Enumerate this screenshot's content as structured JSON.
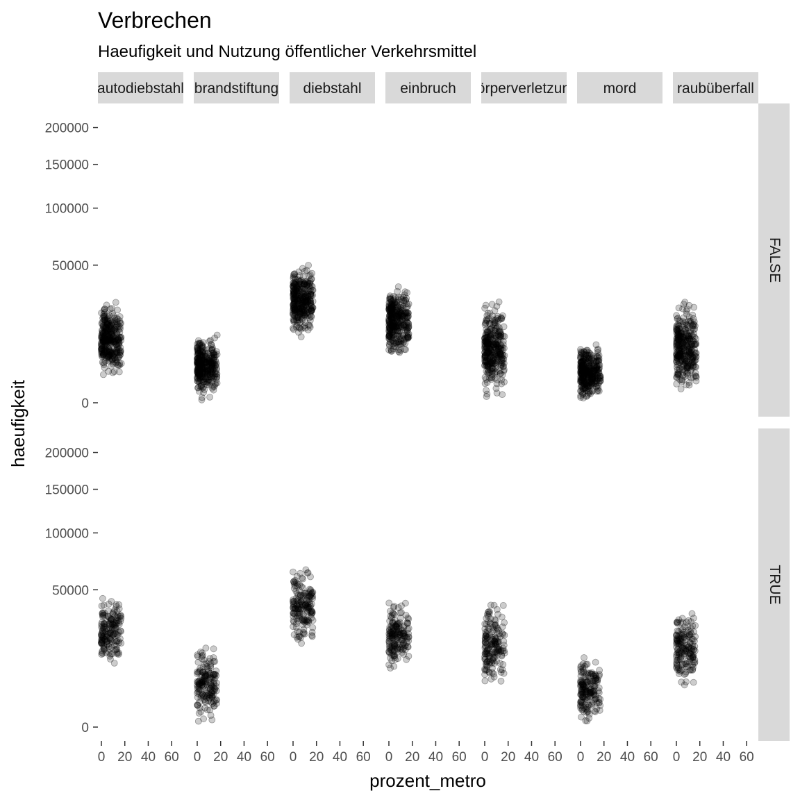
{
  "chart_data": {
    "type": "scatter",
    "title": "Verbrechen",
    "subtitle": "Haeufigkeit und Nutzung öffentlicher Verkehrsmittel",
    "xlabel": "prozent_metro",
    "ylabel": "haeufigkeit",
    "x_ticks": [
      "0",
      "20",
      "40",
      "60"
    ],
    "y_ticks": [
      "0",
      "50000",
      "100000",
      "150000",
      "200000"
    ],
    "y_scale": "sqrt",
    "facet_columns": [
      "autodiebstahl",
      "brandstiftung",
      "diebstahl",
      "einbruch",
      "körperverletzung",
      "mord",
      "raubüberfall"
    ],
    "facet_rows": [
      "FALSE",
      "TRUE"
    ],
    "point_color": "#000000",
    "point_alpha": 0.2,
    "grid": false,
    "panels": [
      {
        "column": "autodiebstahl",
        "row": "FALSE",
        "x_range": [
          0,
          17
        ],
        "y_range": [
          1000,
          30000
        ],
        "density": "high"
      },
      {
        "column": "brandstiftung",
        "row": "FALSE",
        "x_range": [
          0,
          17
        ],
        "y_range": [
          0,
          14000
        ],
        "density": "high"
      },
      {
        "column": "diebstahl",
        "row": "FALSE",
        "x_range": [
          0,
          17
        ],
        "y_range": [
          10000,
          55000
        ],
        "density": "high"
      },
      {
        "column": "einbruch",
        "row": "FALSE",
        "x_range": [
          0,
          17
        ],
        "y_range": [
          4000,
          40000
        ],
        "density": "high"
      },
      {
        "column": "körperverletzung",
        "row": "FALSE",
        "x_range": [
          0,
          17
        ],
        "y_range": [
          0,
          30000
        ],
        "density": "high"
      },
      {
        "column": "mord",
        "row": "FALSE",
        "x_range": [
          0,
          17
        ],
        "y_range": [
          0,
          10000
        ],
        "density": "high"
      },
      {
        "column": "raubüberfall",
        "row": "FALSE",
        "x_range": [
          0,
          17
        ],
        "y_range": [
          0,
          30000
        ],
        "density": "high"
      },
      {
        "column": "autodiebstahl",
        "row": "TRUE",
        "x_range": [
          0,
          17
        ],
        "y_range": [
          8000,
          50000
        ],
        "density": "medium"
      },
      {
        "column": "brandstiftung",
        "row": "TRUE",
        "x_range": [
          0,
          17
        ],
        "y_range": [
          0,
          20000
        ],
        "density": "medium"
      },
      {
        "column": "diebstahl",
        "row": "TRUE",
        "x_range": [
          0,
          17
        ],
        "y_range": [
          15000,
          75000
        ],
        "density": "medium"
      },
      {
        "column": "einbruch",
        "row": "TRUE",
        "x_range": [
          0,
          17
        ],
        "y_range": [
          8000,
          45000
        ],
        "density": "medium"
      },
      {
        "column": "körperverletzung",
        "row": "TRUE",
        "x_range": [
          0,
          17
        ],
        "y_range": [
          3000,
          45000
        ],
        "density": "medium"
      },
      {
        "column": "mord",
        "row": "TRUE",
        "x_range": [
          0,
          17
        ],
        "y_range": [
          0,
          16000
        ],
        "density": "medium"
      },
      {
        "column": "raubüberfall",
        "row": "TRUE",
        "x_range": [
          0,
          17
        ],
        "y_range": [
          3000,
          40000
        ],
        "density": "medium"
      }
    ]
  }
}
